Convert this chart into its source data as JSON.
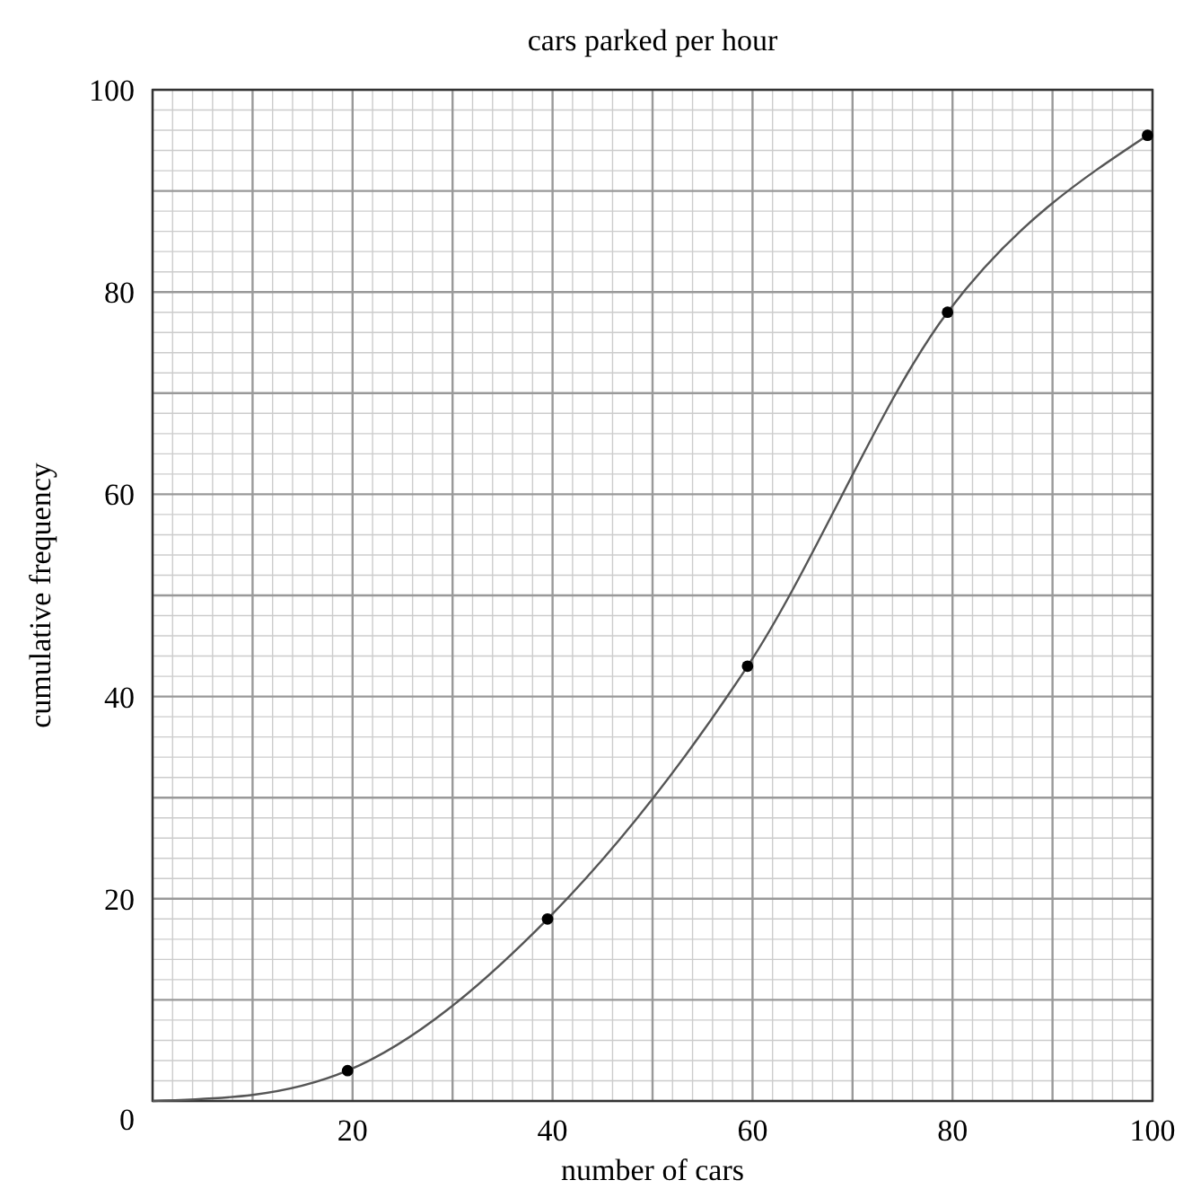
{
  "chart_data": {
    "type": "line",
    "title": "cars parked per hour",
    "xlabel": "number of cars",
    "ylabel": "cumulative frequency",
    "xlim": [
      0,
      100
    ],
    "ylim": [
      0,
      100
    ],
    "xticks": [
      {
        "value": 0,
        "label": null
      },
      {
        "value": 10,
        "label": null
      },
      20,
      {
        "value": 30,
        "label": null
      },
      40,
      {
        "value": 50,
        "label": null
      },
      60,
      {
        "value": 70,
        "label": null
      },
      80,
      {
        "value": 90,
        "label": null
      },
      100
    ],
    "yticks": [
      0,
      {
        "value": 10,
        "label": null
      },
      20,
      {
        "value": 30,
        "label": null
      },
      40,
      {
        "value": 50,
        "label": null
      },
      60,
      {
        "value": 70,
        "label": null
      },
      80,
      {
        "value": 90,
        "label": null
      },
      100
    ],
    "grid": true,
    "series": [
      {
        "color": "#555555",
        "marker": "none",
        "line_style": "solid",
        "x": [
          0,
          10,
          19.5,
          39.5,
          59.5,
          79.5,
          99.5
        ],
        "values": [
          0,
          0.6,
          3,
          18,
          43,
          78,
          95.5
        ]
      },
      {
        "type": "scatter",
        "color": "#000000",
        "marker": "circle",
        "x": [
          19.5,
          39.5,
          59.5,
          79.5,
          99.5
        ],
        "values": [
          3,
          18,
          43,
          78,
          95.5
        ]
      }
    ]
  }
}
